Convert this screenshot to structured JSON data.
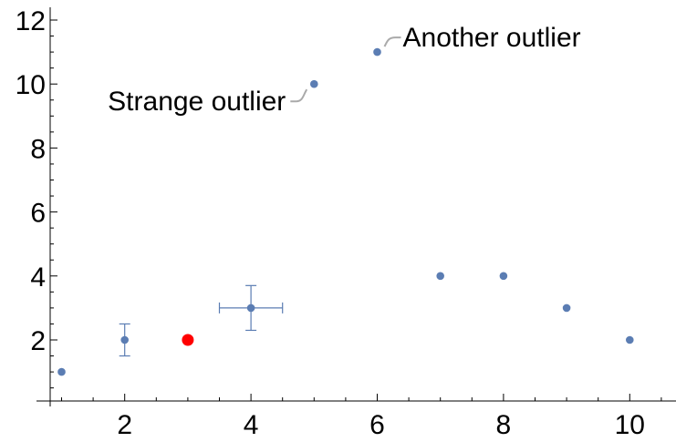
{
  "chart_data": {
    "type": "scatter",
    "title": "",
    "xlabel": "",
    "ylabel": "",
    "xlim": [
      0.8,
      10.7
    ],
    "ylim": [
      0,
      12.3
    ],
    "x_ticks": [
      2,
      4,
      6,
      8,
      10
    ],
    "y_ticks": [
      2,
      4,
      6,
      8,
      10,
      12
    ],
    "x_tick_labels": [
      "2",
      "4",
      "6",
      "8",
      "10"
    ],
    "y_tick_labels": [
      "2",
      "4",
      "6",
      "8",
      "10",
      "12"
    ],
    "grid": false,
    "colors": {
      "points": "#5b7db3",
      "highlight": "#ff0000",
      "callout": "#aaaaaa",
      "axis": "#000000"
    },
    "points": [
      {
        "x": 1,
        "y": 1
      },
      {
        "x": 2,
        "y": 2,
        "y_error": 0.5
      },
      {
        "x": 3,
        "y": 2,
        "highlight": true
      },
      {
        "x": 4,
        "y": 3,
        "x_error": 0.5,
        "y_error": 0.7
      },
      {
        "x": 5,
        "y": 10
      },
      {
        "x": 6,
        "y": 11
      },
      {
        "x": 7,
        "y": 4
      },
      {
        "x": 8,
        "y": 4
      },
      {
        "x": 9,
        "y": 3
      },
      {
        "x": 10,
        "y": 2
      }
    ],
    "annotations": [
      {
        "text": "Strange outlier",
        "point_index": 4,
        "side": "left"
      },
      {
        "text": "Another outlier",
        "point_index": 5,
        "side": "right"
      }
    ]
  }
}
